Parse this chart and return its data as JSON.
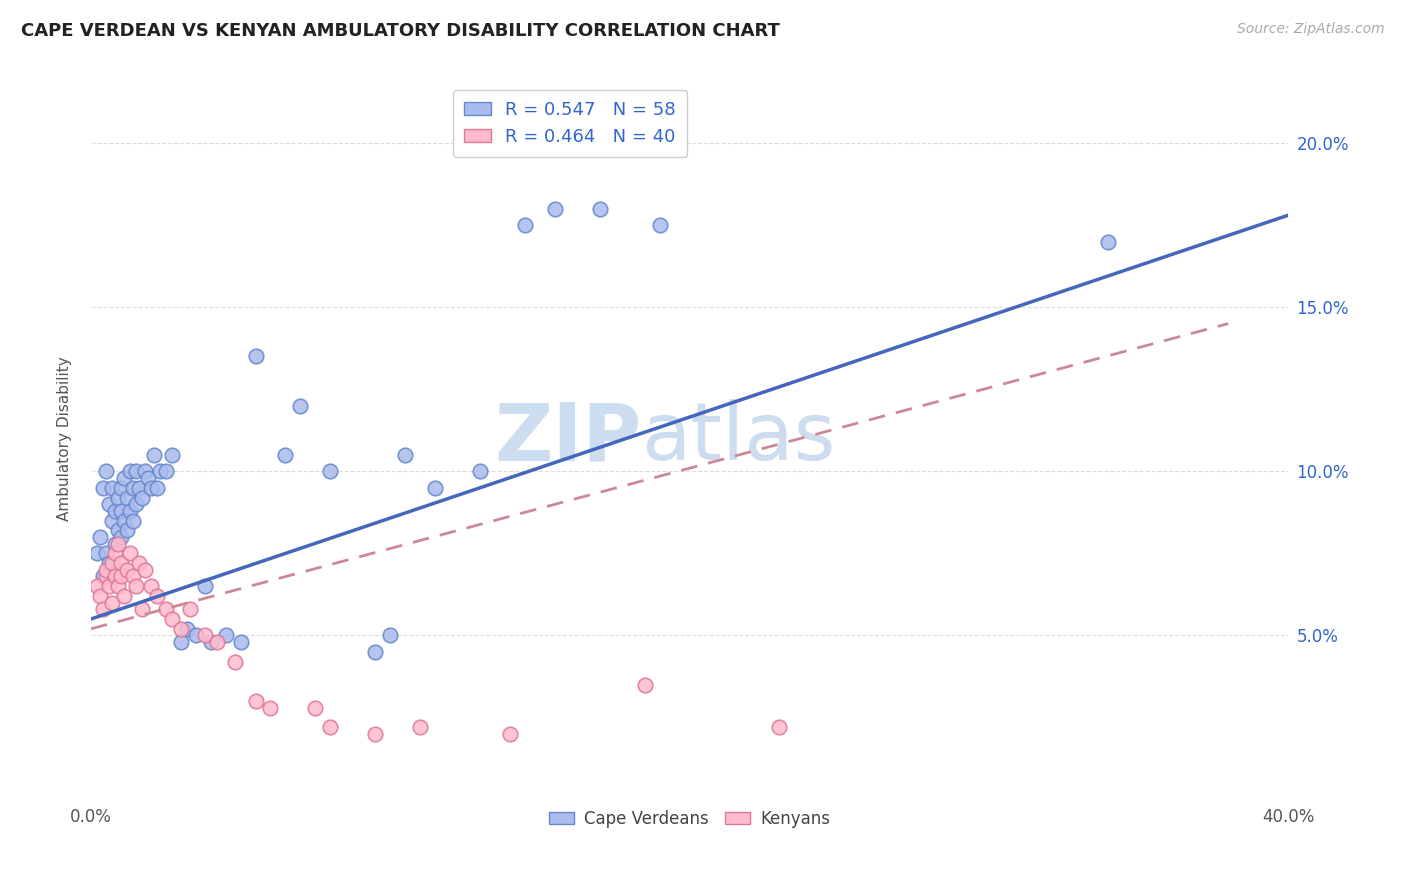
{
  "title": "CAPE VERDEAN VS KENYAN AMBULATORY DISABILITY CORRELATION CHART",
  "source": "Source: ZipAtlas.com",
  "ylabel": "Ambulatory Disability",
  "xmin": 0.0,
  "xmax": 0.4,
  "ymin": 0.0,
  "ymax": 0.22,
  "ytick_labels": [
    "5.0%",
    "10.0%",
    "15.0%",
    "20.0%"
  ],
  "ytick_values": [
    0.05,
    0.1,
    0.15,
    0.2
  ],
  "legend_r1": "0.547",
  "legend_n1": "58",
  "legend_r2": "0.464",
  "legend_n2": "40",
  "color_blue_fill": "#AABBEE",
  "color_blue_edge": "#6688CC",
  "color_pink_fill": "#FFBBCC",
  "color_pink_edge": "#DD7799",
  "color_blue_line": "#4466BB",
  "color_pink_line": "#CC8899",
  "color_title": "#222222",
  "color_source": "#AAAAAA",
  "color_watermark": "#CCDDF0",
  "watermark_zip": "ZIP",
  "watermark_atlas": "atlas",
  "cape_verdean_x": [
    0.002,
    0.003,
    0.004,
    0.004,
    0.005,
    0.005,
    0.006,
    0.006,
    0.007,
    0.007,
    0.008,
    0.008,
    0.009,
    0.009,
    0.01,
    0.01,
    0.01,
    0.011,
    0.011,
    0.012,
    0.012,
    0.013,
    0.013,
    0.014,
    0.014,
    0.015,
    0.015,
    0.016,
    0.017,
    0.018,
    0.019,
    0.02,
    0.021,
    0.022,
    0.023,
    0.025,
    0.027,
    0.03,
    0.032,
    0.035,
    0.038,
    0.04,
    0.045,
    0.05,
    0.055,
    0.065,
    0.07,
    0.08,
    0.095,
    0.1,
    0.105,
    0.115,
    0.13,
    0.145,
    0.155,
    0.17,
    0.19,
    0.34
  ],
  "cape_verdean_y": [
    0.075,
    0.08,
    0.068,
    0.095,
    0.1,
    0.075,
    0.072,
    0.09,
    0.085,
    0.095,
    0.078,
    0.088,
    0.082,
    0.092,
    0.08,
    0.088,
    0.095,
    0.085,
    0.098,
    0.082,
    0.092,
    0.088,
    0.1,
    0.085,
    0.095,
    0.09,
    0.1,
    0.095,
    0.092,
    0.1,
    0.098,
    0.095,
    0.105,
    0.095,
    0.1,
    0.1,
    0.105,
    0.048,
    0.052,
    0.05,
    0.065,
    0.048,
    0.05,
    0.048,
    0.135,
    0.105,
    0.12,
    0.1,
    0.045,
    0.05,
    0.105,
    0.095,
    0.1,
    0.175,
    0.18,
    0.18,
    0.175,
    0.17
  ],
  "kenyan_x": [
    0.002,
    0.003,
    0.004,
    0.005,
    0.005,
    0.006,
    0.007,
    0.007,
    0.008,
    0.008,
    0.009,
    0.009,
    0.01,
    0.01,
    0.011,
    0.012,
    0.013,
    0.014,
    0.015,
    0.016,
    0.017,
    0.018,
    0.02,
    0.022,
    0.025,
    0.027,
    0.03,
    0.033,
    0.038,
    0.042,
    0.048,
    0.055,
    0.06,
    0.075,
    0.08,
    0.095,
    0.11,
    0.14,
    0.185,
    0.23
  ],
  "kenyan_y": [
    0.065,
    0.062,
    0.058,
    0.068,
    0.07,
    0.065,
    0.072,
    0.06,
    0.068,
    0.075,
    0.065,
    0.078,
    0.072,
    0.068,
    0.062,
    0.07,
    0.075,
    0.068,
    0.065,
    0.072,
    0.058,
    0.07,
    0.065,
    0.062,
    0.058,
    0.055,
    0.052,
    0.058,
    0.05,
    0.048,
    0.042,
    0.03,
    0.028,
    0.028,
    0.022,
    0.02,
    0.022,
    0.02,
    0.035,
    0.022
  ],
  "cv_line_x0": 0.0,
  "cv_line_x1": 0.4,
  "cv_line_y0": 0.055,
  "cv_line_y1": 0.178,
  "ken_line_x0": 0.0,
  "ken_line_x1": 0.38,
  "ken_line_y0": 0.052,
  "ken_line_y1": 0.145
}
